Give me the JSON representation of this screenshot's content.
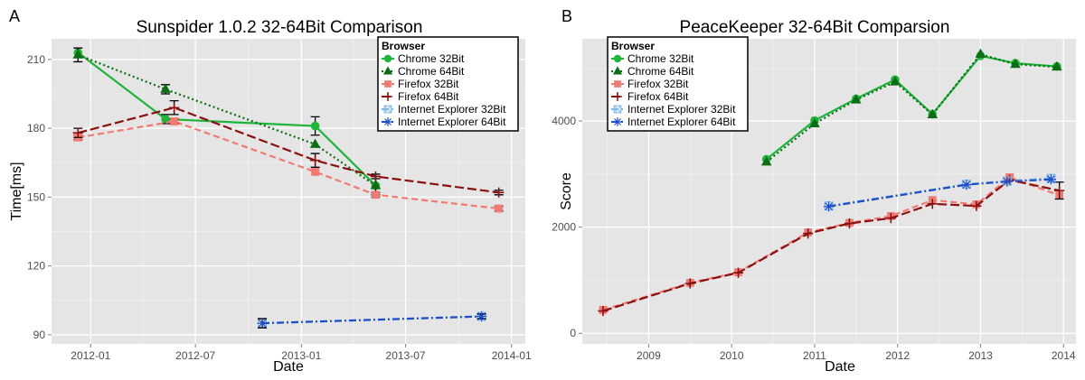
{
  "panels": [
    {
      "letter": "A",
      "title": "Sunspider 1.0.2 32-64Bit Comparison",
      "xlabel": "Date",
      "ylabel": "Time[ms]"
    },
    {
      "letter": "B",
      "title": "PeaceKeeper 32-64Bit Comparsion",
      "xlabel": "Date",
      "ylabel": "Score"
    }
  ],
  "legend": {
    "title": "Browser",
    "entries": [
      {
        "label": "Chrome 32Bit",
        "color": "#1db53a",
        "shape": "circle",
        "linetype": "solid"
      },
      {
        "label": "Chrome 64Bit",
        "color": "#0b6e12",
        "shape": "triangle",
        "linetype": "dotted"
      },
      {
        "label": "Firefox 32Bit",
        "color": "#f37a72",
        "shape": "square",
        "linetype": "dashed"
      },
      {
        "label": "Firefox 64Bit",
        "color": "#8b1010",
        "shape": "plus",
        "linetype": "longdash"
      },
      {
        "label": "Internet Explorer 32Bit",
        "color": "#7fb6ee",
        "shape": "square-cross",
        "linetype": "dotdash"
      },
      {
        "label": "Internet Explorer 64Bit",
        "color": "#1f4fc8",
        "shape": "asterisk",
        "linetype": "dotdash"
      }
    ]
  },
  "chart_data": [
    {
      "type": "line",
      "title": "Sunspider 1.0.2 32-64Bit Comparison",
      "xlabel": "Date",
      "ylabel": "Time[ms]",
      "x_type": "date",
      "xlim": [
        "2011-10-25",
        "2014-01-25"
      ],
      "ylim": [
        86,
        219
      ],
      "x_ticks": [
        "2012-01-01",
        "2012-07-01",
        "2013-01-01",
        "2013-07-01",
        "2014-01-01"
      ],
      "x_tick_labels": [
        "2012-01",
        "2012-07",
        "2013-01",
        "2013-07",
        "2014-01"
      ],
      "y_ticks": [
        90,
        120,
        150,
        180,
        210
      ],
      "y_tick_labels": [
        "90",
        "120",
        "150",
        "180",
        "210"
      ],
      "grid": true,
      "legend_position": "top-right",
      "series": [
        {
          "name": "Chrome 32Bit",
          "points": [
            {
              "x": "2011-12-10",
              "y": 213
            },
            {
              "x": "2012-05-10",
              "y": 184,
              "err": 2
            },
            {
              "x": "2013-01-25",
              "y": 181,
              "err": 4
            },
            {
              "x": "2013-05-10",
              "y": 155
            }
          ]
        },
        {
          "name": "Chrome 64Bit",
          "points": [
            {
              "x": "2011-12-10",
              "y": 212,
              "err": 3
            },
            {
              "x": "2012-05-10",
              "y": 197,
              "err": 2
            },
            {
              "x": "2013-01-25",
              "y": 173
            },
            {
              "x": "2013-05-10",
              "y": 155,
              "err": 4
            }
          ]
        },
        {
          "name": "Firefox 32Bit",
          "points": [
            {
              "x": "2011-12-10",
              "y": 176,
              "err": 1
            },
            {
              "x": "2012-05-25",
              "y": 183,
              "err": 1
            },
            {
              "x": "2013-01-25",
              "y": 161
            },
            {
              "x": "2013-05-10",
              "y": 151,
              "err": 1
            },
            {
              "x": "2013-12-10",
              "y": 145,
              "err": 1
            }
          ]
        },
        {
          "name": "Firefox 64Bit",
          "points": [
            {
              "x": "2011-12-10",
              "y": 178,
              "err": 2
            },
            {
              "x": "2012-05-25",
              "y": 189,
              "err": 3
            },
            {
              "x": "2013-01-25",
              "y": 166,
              "err": 3
            },
            {
              "x": "2013-05-10",
              "y": 159,
              "err": 1
            },
            {
              "x": "2013-12-10",
              "y": 152,
              "err": 1
            }
          ]
        },
        {
          "name": "Internet Explorer 32Bit",
          "points": [
            {
              "x": "2012-10-25",
              "y": 95,
              "err": 2
            },
            {
              "x": "2013-11-10",
              "y": 98,
              "err": 1
            }
          ]
        },
        {
          "name": "Internet Explorer 64Bit",
          "points": [
            {
              "x": "2012-10-25",
              "y": 95,
              "err": 2
            },
            {
              "x": "2013-11-10",
              "y": 98,
              "err": 1
            }
          ]
        }
      ]
    },
    {
      "type": "line",
      "title": "PeaceKeeper 32-64Bit Comparsion",
      "xlabel": "Date",
      "ylabel": "Score",
      "x_type": "year",
      "xlim": [
        2008.2,
        2014.15
      ],
      "ylim": [
        -200,
        5550
      ],
      "x_ticks": [
        2009,
        2010,
        2011,
        2012,
        2013,
        2014
      ],
      "x_tick_labels": [
        "2009",
        "2010",
        "2011",
        "2012",
        "2013",
        "2014"
      ],
      "y_ticks": [
        0,
        2000,
        4000
      ],
      "y_tick_labels": [
        "0",
        "2000",
        "4000"
      ],
      "grid": true,
      "legend_position": "top-left",
      "series": [
        {
          "name": "Chrome 32Bit",
          "points": [
            {
              "x": 2010.42,
              "y": 3280
            },
            {
              "x": 2011.0,
              "y": 4010
            },
            {
              "x": 2011.5,
              "y": 4420
            },
            {
              "x": 2011.97,
              "y": 4780
            },
            {
              "x": 2012.42,
              "y": 4130
            },
            {
              "x": 2013.0,
              "y": 5230
            },
            {
              "x": 2013.42,
              "y": 5090
            },
            {
              "x": 2013.92,
              "y": 5030
            }
          ]
        },
        {
          "name": "Chrome 64Bit",
          "points": [
            {
              "x": 2010.42,
              "y": 3230
            },
            {
              "x": 2011.0,
              "y": 3950
            },
            {
              "x": 2011.5,
              "y": 4400
            },
            {
              "x": 2011.97,
              "y": 4740
            },
            {
              "x": 2012.42,
              "y": 4120
            },
            {
              "x": 2013.0,
              "y": 5260
            },
            {
              "x": 2013.42,
              "y": 5070
            },
            {
              "x": 2013.92,
              "y": 5020
            }
          ]
        },
        {
          "name": "Firefox 32Bit",
          "points": [
            {
              "x": 2008.45,
              "y": 440
            },
            {
              "x": 2009.5,
              "y": 950
            },
            {
              "x": 2010.08,
              "y": 1150
            },
            {
              "x": 2010.92,
              "y": 1900
            },
            {
              "x": 2011.42,
              "y": 2080
            },
            {
              "x": 2011.92,
              "y": 2210
            },
            {
              "x": 2012.42,
              "y": 2510
            },
            {
              "x": 2012.95,
              "y": 2430
            },
            {
              "x": 2013.35,
              "y": 2940
            },
            {
              "x": 2013.95,
              "y": 2600
            }
          ]
        },
        {
          "name": "Firefox 64Bit",
          "points": [
            {
              "x": 2008.45,
              "y": 420
            },
            {
              "x": 2009.5,
              "y": 940
            },
            {
              "x": 2010.08,
              "y": 1140
            },
            {
              "x": 2010.92,
              "y": 1880
            },
            {
              "x": 2011.42,
              "y": 2070
            },
            {
              "x": 2011.92,
              "y": 2170
            },
            {
              "x": 2012.42,
              "y": 2440
            },
            {
              "x": 2012.95,
              "y": 2400
            },
            {
              "x": 2013.35,
              "y": 2890
            },
            {
              "x": 2013.95,
              "y": 2690,
              "err": 160
            }
          ]
        },
        {
          "name": "Internet Explorer 32Bit",
          "points": [
            {
              "x": 2011.17,
              "y": 2400
            },
            {
              "x": 2012.83,
              "y": 2810
            },
            {
              "x": 2013.32,
              "y": 2870
            },
            {
              "x": 2013.85,
              "y": 2920
            }
          ]
        },
        {
          "name": "Internet Explorer 64Bit",
          "points": [
            {
              "x": 2011.17,
              "y": 2390
            },
            {
              "x": 2012.83,
              "y": 2800
            },
            {
              "x": 2013.32,
              "y": 2860
            },
            {
              "x": 2013.85,
              "y": 2900
            }
          ]
        }
      ]
    }
  ]
}
